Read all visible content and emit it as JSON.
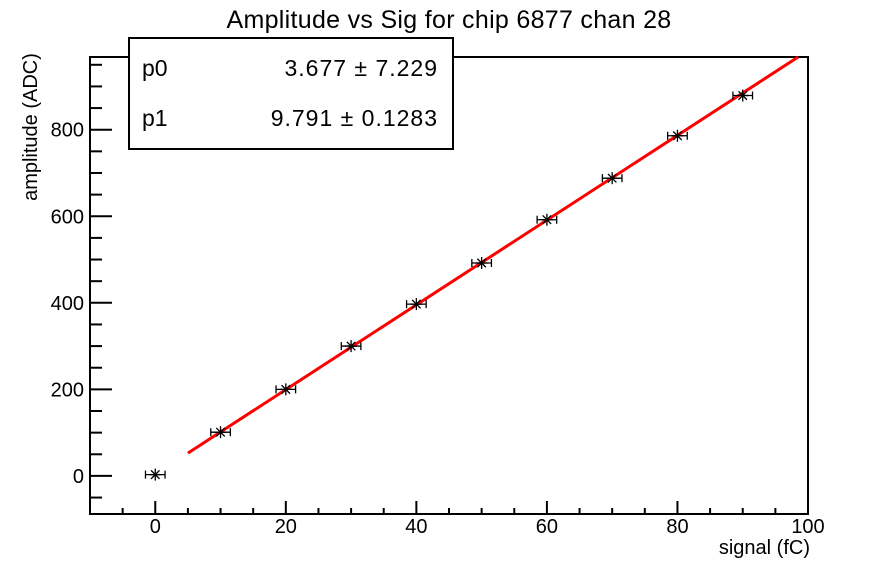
{
  "title": "Amplitude vs Sig for chip 6877 chan 28",
  "stats_box": {
    "rows": [
      {
        "label": "p0",
        "value": "3.677 ± 7.229"
      },
      {
        "label": "p1",
        "value": "9.791 ± 0.1283"
      }
    ]
  },
  "chart_data": {
    "type": "scatter",
    "title": "Amplitude vs Sig for chip 6877 chan 28",
    "xlabel": "signal (fC)",
    "ylabel": "amplitude (ADC)",
    "xlim": [
      -10,
      100
    ],
    "ylim": [
      -88,
      968
    ],
    "grid": false,
    "x_major_ticks": [
      0,
      20,
      40,
      60,
      80,
      100
    ],
    "x_minor_step": 5,
    "y_major_ticks": [
      0,
      200,
      400,
      600,
      800
    ],
    "y_minor_step": 50,
    "points": {
      "x": [
        0,
        10,
        20,
        30,
        40,
        50,
        60,
        70,
        80,
        90
      ],
      "y": [
        3,
        101,
        200,
        300,
        397,
        492,
        592,
        688,
        786,
        879
      ],
      "x_error": 1.5,
      "marker": "asterisk",
      "marker_color": "#000000"
    },
    "fit": {
      "model": "p0 + p1*x",
      "p0": 3.677,
      "p0_error": 7.229,
      "p1": 9.791,
      "p1_error": 0.1283,
      "draw_range": [
        5,
        100
      ],
      "line_color": "#ff0000"
    },
    "axis_color": "#000000",
    "background_color": "#ffffff"
  }
}
